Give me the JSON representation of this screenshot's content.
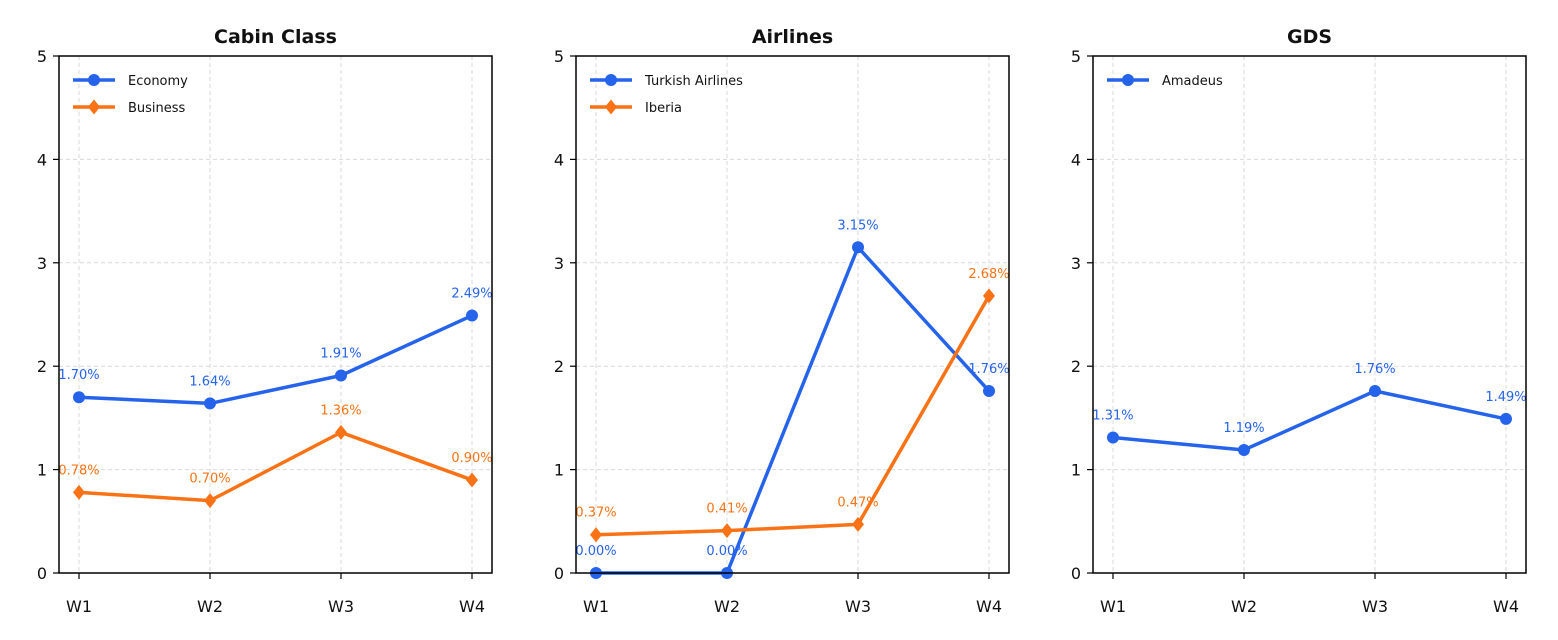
{
  "colors": {
    "blue": "#2563eb",
    "orange": "#f97316"
  },
  "chart_data": [
    {
      "type": "line",
      "title": "Cabin Class",
      "categories": [
        "W1",
        "W2",
        "W3",
        "W4"
      ],
      "ylim": [
        0,
        5
      ],
      "yticks": [
        "0",
        "1",
        "2",
        "3",
        "4",
        "5"
      ],
      "legend_position": "top-left",
      "grid": true,
      "series": [
        {
          "name": "Economy",
          "marker": "circle",
          "color": "#2563eb",
          "values": [
            1.7,
            1.64,
            1.91,
            2.49
          ],
          "labels": [
            "1.70%",
            "1.64%",
            "1.91%",
            "2.49%"
          ]
        },
        {
          "name": "Business",
          "marker": "diamond",
          "color": "#f97316",
          "values": [
            0.78,
            0.7,
            1.36,
            0.9
          ],
          "labels": [
            "0.78%",
            "0.70%",
            "1.36%",
            "0.90%"
          ]
        }
      ]
    },
    {
      "type": "line",
      "title": "Airlines",
      "categories": [
        "W1",
        "W2",
        "W3",
        "W4"
      ],
      "ylim": [
        0,
        5
      ],
      "yticks": [
        "0",
        "1",
        "2",
        "3",
        "4",
        "5"
      ],
      "legend_position": "top-left",
      "grid": true,
      "series": [
        {
          "name": "Turkish Airlines",
          "marker": "circle",
          "color": "#2563eb",
          "values": [
            0.0,
            0.0,
            3.15,
            1.76
          ],
          "labels": [
            "0.00%",
            "0.00%",
            "3.15%",
            "1.76%"
          ]
        },
        {
          "name": "Iberia",
          "marker": "diamond",
          "color": "#f97316",
          "values": [
            0.37,
            0.41,
            0.47,
            2.68
          ],
          "labels": [
            "0.37%",
            "0.41%",
            "0.47%",
            "2.68%"
          ]
        }
      ]
    },
    {
      "type": "line",
      "title": "GDS",
      "categories": [
        "W1",
        "W2",
        "W3",
        "W4"
      ],
      "ylim": [
        0,
        5
      ],
      "yticks": [
        "0",
        "1",
        "2",
        "3",
        "4",
        "5"
      ],
      "legend_position": "top-left",
      "grid": true,
      "series": [
        {
          "name": "Amadeus",
          "marker": "circle",
          "color": "#2563eb",
          "values": [
            1.31,
            1.19,
            1.76,
            1.49
          ],
          "labels": [
            "1.31%",
            "1.19%",
            "1.76%",
            "1.49%"
          ]
        }
      ]
    }
  ]
}
